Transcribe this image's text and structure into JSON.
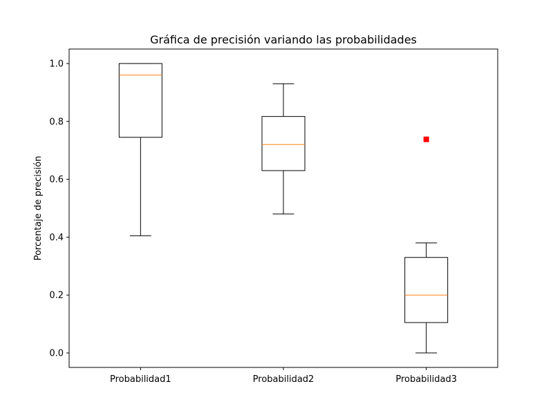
{
  "chart_data": {
    "type": "boxplot",
    "title": "Gráfica de precisión variando las probabilidades",
    "xlabel": "",
    "ylabel": "Porcentaje de precisión",
    "ylim": [
      -0.05,
      1.05
    ],
    "yticks": [
      0.0,
      0.2,
      0.4,
      0.6,
      0.8,
      1.0
    ],
    "ytick_labels": [
      "0.0",
      "0.2",
      "0.4",
      "0.6",
      "0.8",
      "1.0"
    ],
    "grid": false,
    "legend": "none",
    "categories": [
      "Probabilidad1",
      "Probabilidad2",
      "Probabilidad3"
    ],
    "boxes": [
      {
        "whisker_low": 0.405,
        "q1": 0.745,
        "median": 0.96,
        "q3": 1.0,
        "whisker_high": 1.0,
        "outliers": []
      },
      {
        "whisker_low": 0.48,
        "q1": 0.63,
        "median": 0.72,
        "q3": 0.817,
        "whisker_high": 0.93,
        "outliers": []
      },
      {
        "whisker_low": 0.0,
        "q1": 0.105,
        "median": 0.2,
        "q3": 0.33,
        "whisker_high": 0.38,
        "outliers": [
          0.738
        ]
      }
    ],
    "colors": {
      "box": "#000000",
      "median": "#ff7f0e",
      "outlier": "#ff0000",
      "axes": "#000000",
      "background": "#ffffff"
    }
  }
}
